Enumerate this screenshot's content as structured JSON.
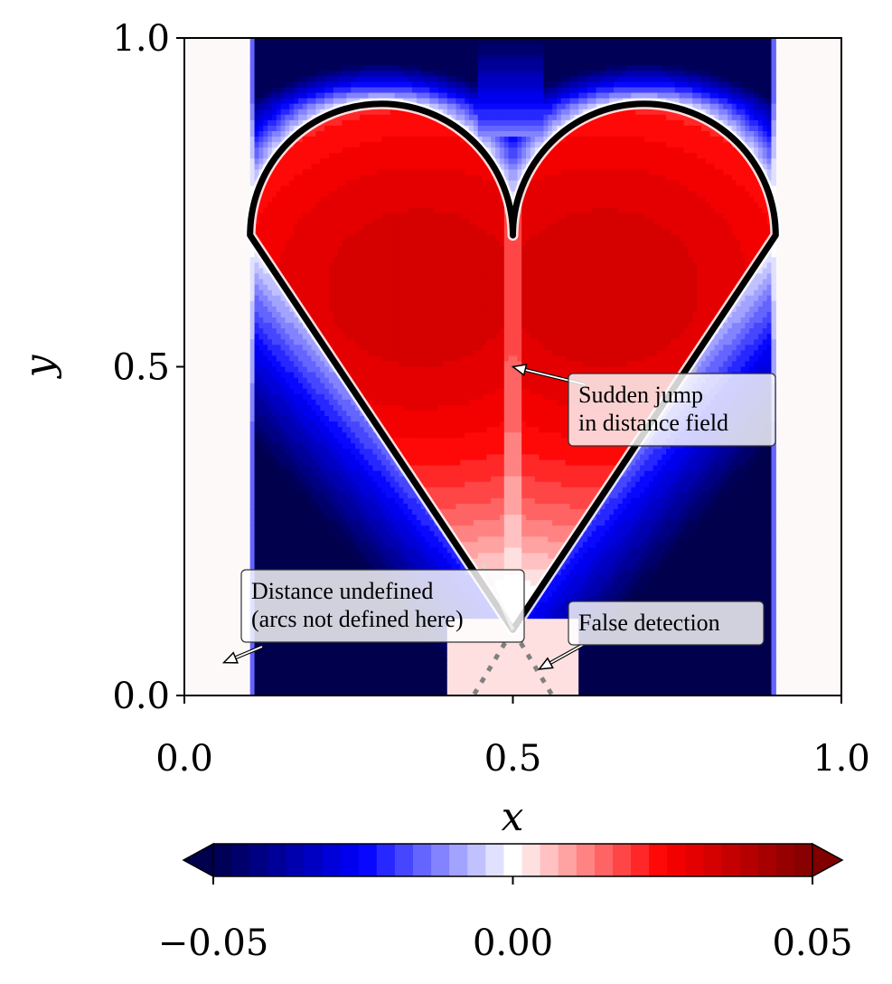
{
  "chart_data": {
    "type": "heatmap",
    "title": "",
    "xlabel": "x",
    "ylabel": "y",
    "xlim": [
      0.0,
      1.0
    ],
    "ylim": [
      0.0,
      1.0
    ],
    "xticks": [
      "0.0",
      "0.5",
      "1.0"
    ],
    "yticks": [
      "0.0",
      "0.5",
      "1.0"
    ],
    "grid": false,
    "field_domain_x": [
      0.1,
      0.9
    ],
    "colormap": "seismic",
    "colorbar": {
      "orientation": "horizontal",
      "range": [
        -0.05,
        0.05
      ],
      "ticks": [
        "−0.05",
        "0.00",
        "0.05"
      ],
      "levels": 33,
      "extend": "both"
    },
    "heart_outline": {
      "lobe_centers": [
        [
          0.3,
          0.7
        ],
        [
          0.7,
          0.7
        ]
      ],
      "lobe_radius": 0.2,
      "cusp": [
        0.5,
        0.7
      ],
      "tip": [
        0.5,
        0.1
      ],
      "side_vertices": [
        [
          0.1,
          0.7
        ],
        [
          0.9,
          0.7
        ]
      ],
      "dotted_extension_to": [
        [
          0.44,
          0.0
        ],
        [
          0.56,
          0.0
        ]
      ]
    },
    "annotations": [
      {
        "text_lines": [
          "Sudden jump",
          "in distance field"
        ],
        "arrow_target": [
          0.5,
          0.5
        ]
      },
      {
        "text_lines": [
          "Distance undefined",
          "(arcs not defined here)"
        ],
        "arrow_target": [
          0.06,
          0.05
        ]
      },
      {
        "text_lines": [
          "False detection"
        ],
        "arrow_target": [
          0.54,
          0.04
        ]
      }
    ]
  },
  "colors": {
    "outline": "#000000",
    "dotted_line": "#808080",
    "negative_max": "#00004c",
    "negative_mid": "#0000ff",
    "zero": "#ffffff",
    "positive_mid": "#ff0000",
    "positive_max": "#800000"
  }
}
